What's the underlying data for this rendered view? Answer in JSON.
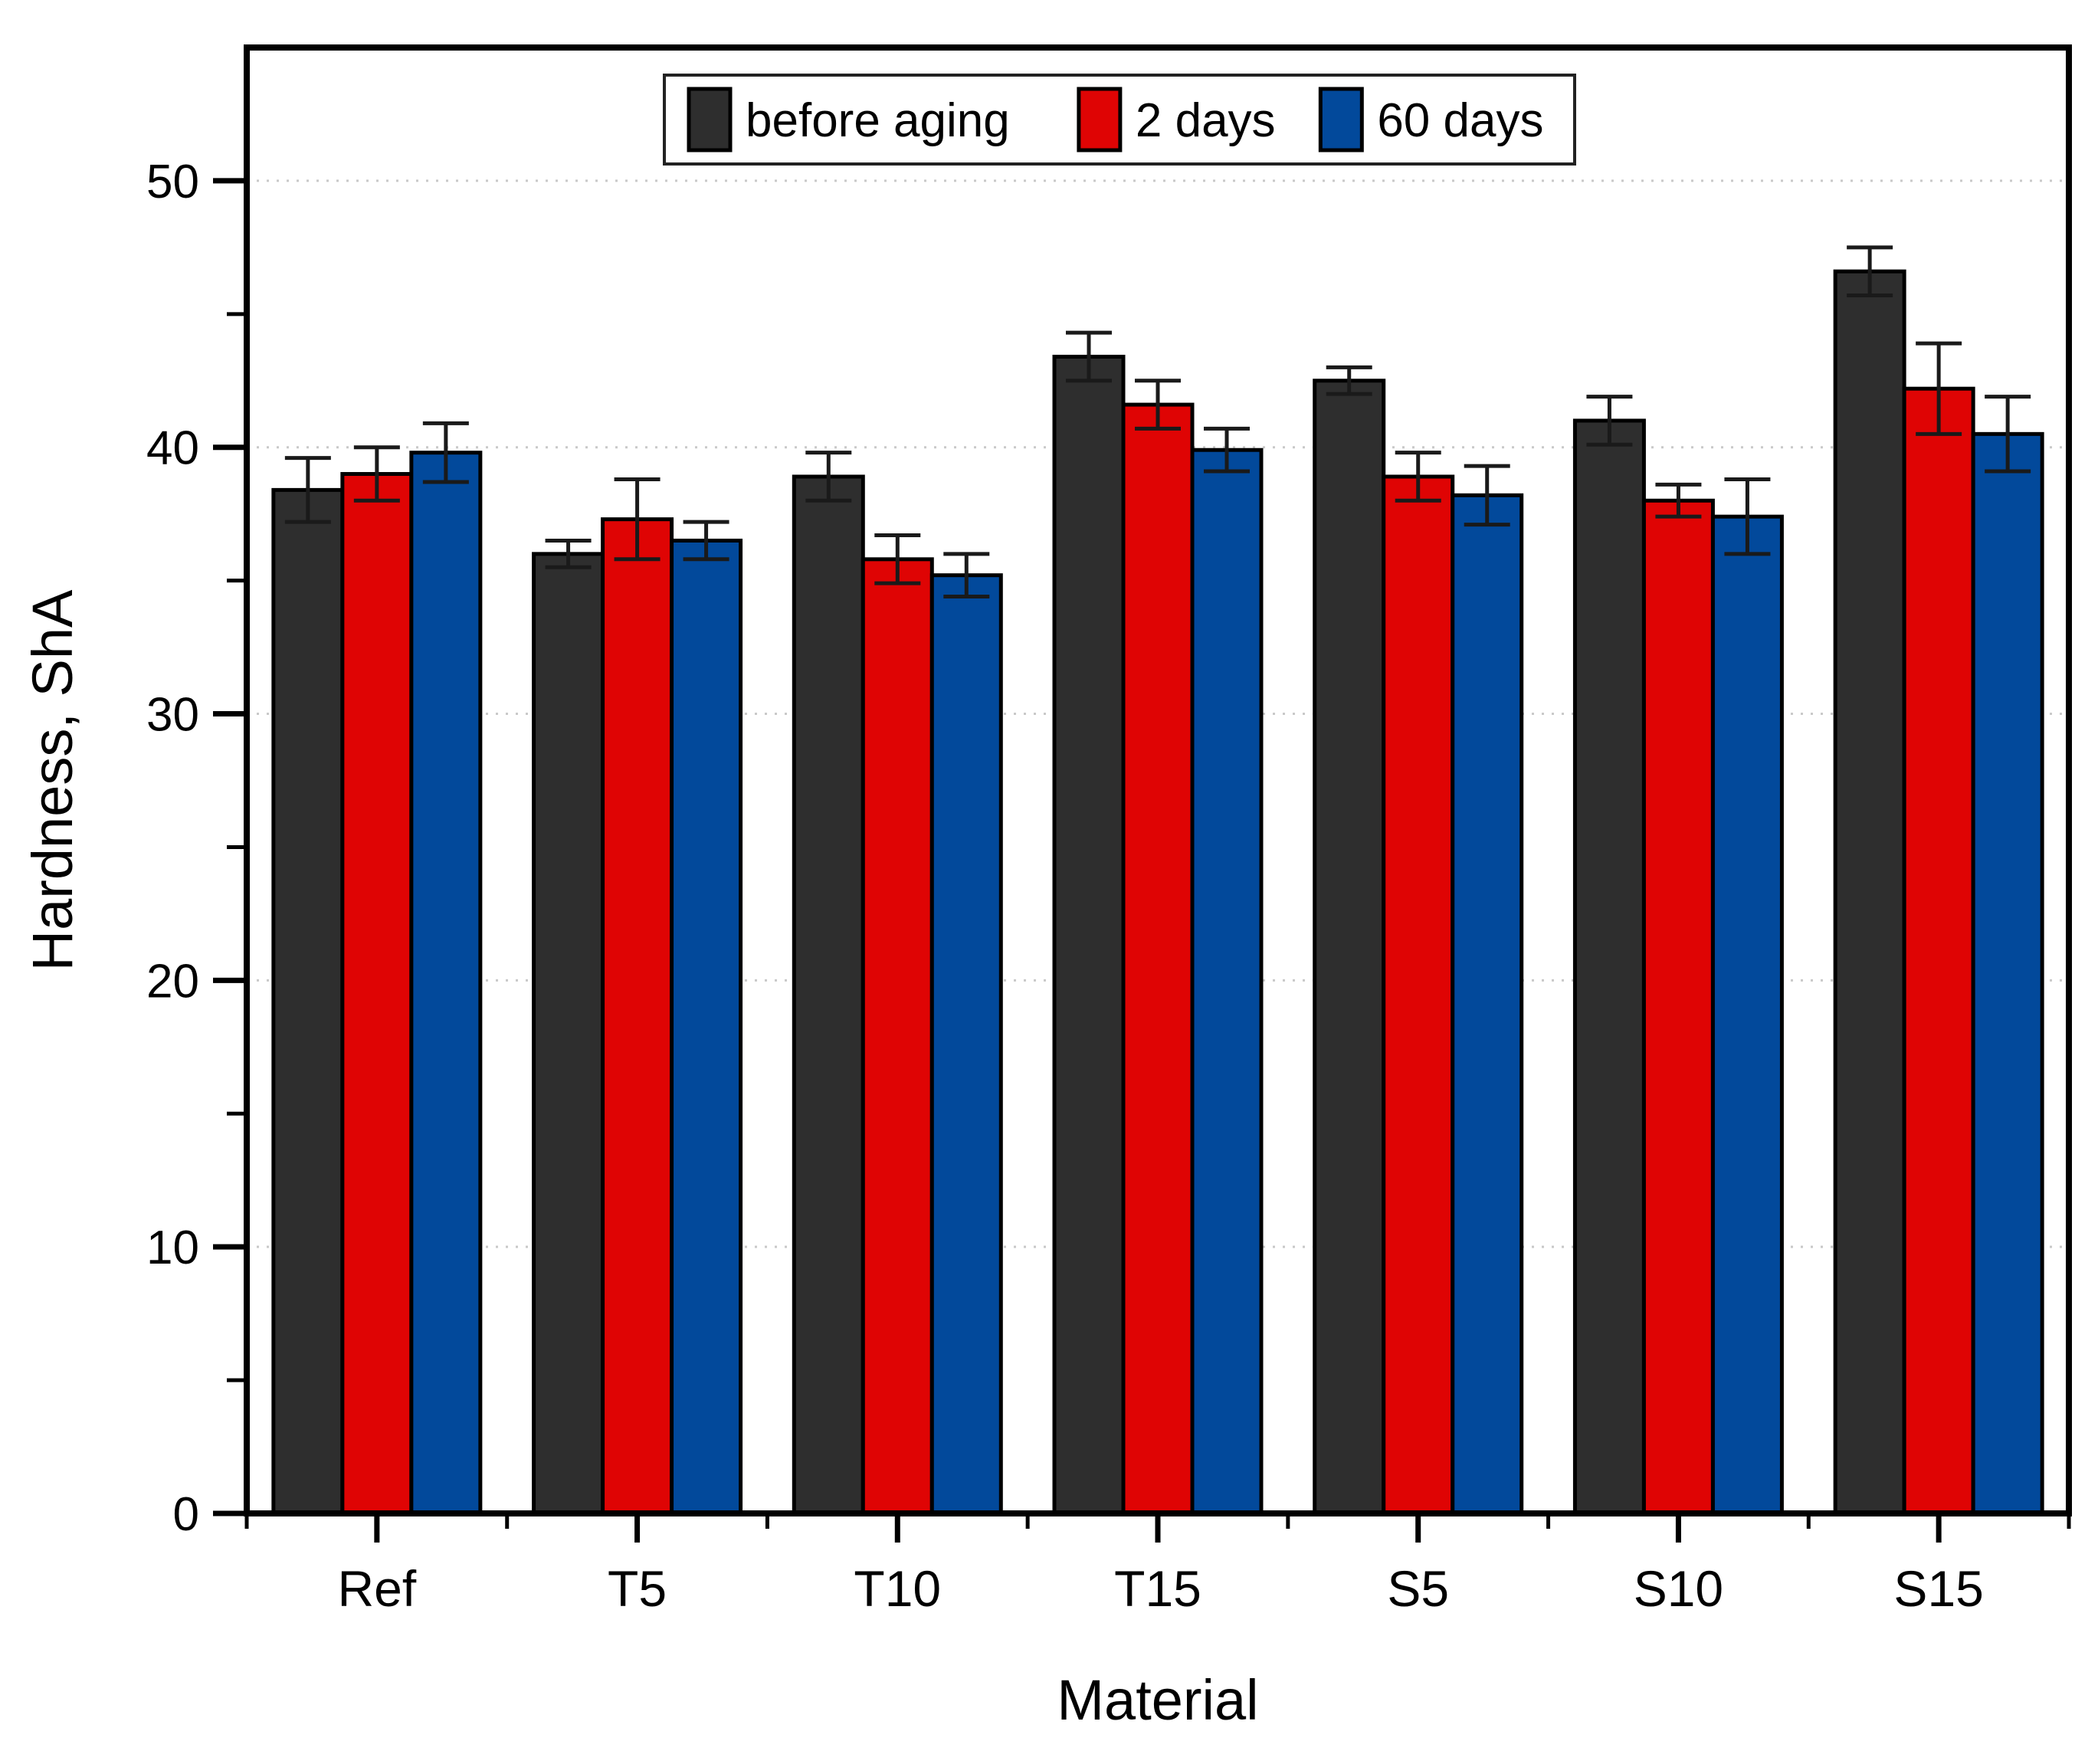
{
  "figure": {
    "background_color": "#ffffff",
    "frame_color": "#000000",
    "gridline_color": "#c9c9c9",
    "error_bar_color": "#1a1a1a"
  },
  "chart_data": {
    "type": "bar",
    "title": "",
    "xlabel": "Material",
    "ylabel": "Hardness, ShA",
    "categories": [
      "Ref",
      "T5",
      "T10",
      "T15",
      "S5",
      "S10",
      "S15"
    ],
    "series": [
      {
        "name": "before aging",
        "color": "#2E2E2E",
        "values": [
          38.4,
          36.0,
          38.9,
          43.4,
          42.5,
          41.0,
          46.6
        ],
        "errors": [
          1.2,
          0.5,
          0.9,
          0.9,
          0.5,
          0.9,
          0.9
        ]
      },
      {
        "name": "2 days",
        "color": "#DF0404",
        "values": [
          39.0,
          37.3,
          35.8,
          41.6,
          38.9,
          38.0,
          42.2
        ],
        "errors": [
          1.0,
          1.5,
          0.9,
          0.9,
          0.9,
          0.6,
          1.7
        ]
      },
      {
        "name": "60 days",
        "color": "#02499B",
        "values": [
          39.8,
          36.5,
          35.2,
          39.9,
          38.2,
          37.4,
          40.5
        ],
        "errors": [
          1.1,
          0.7,
          0.8,
          0.8,
          1.1,
          1.4,
          1.4
        ]
      }
    ],
    "ylim": [
      0,
      55
    ],
    "yticks_major": [
      0,
      10,
      20,
      30,
      40,
      50
    ],
    "yticks_minor": [
      5,
      15,
      25,
      35,
      45
    ],
    "grid": "horizontal dotted lines at major y ticks",
    "legend_position": "top-center inside plot, boxed"
  }
}
